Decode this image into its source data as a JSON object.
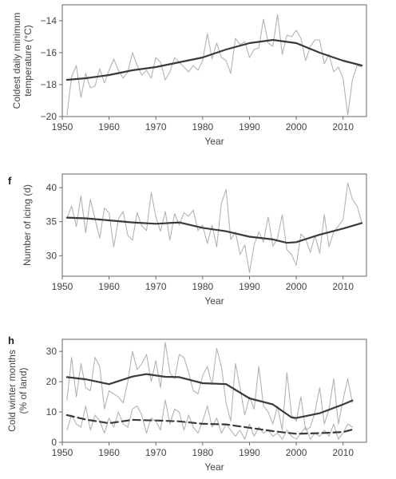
{
  "chart_data": [
    {
      "type": "line",
      "panel_letter": "",
      "xlabel": "Year",
      "ylabel_lines": [
        "Coldest daily minimum",
        "temperature (°C)"
      ],
      "xlim": [
        1950,
        2015
      ],
      "ylim": [
        -20,
        -13
      ],
      "xticks": [
        1950,
        1960,
        1970,
        1980,
        1990,
        2000,
        2010
      ],
      "yticks": [
        -20,
        -18,
        -16,
        -14
      ],
      "series": [
        {
          "style": "raw",
          "color": "#b3b3b3",
          "x": [
            1951,
            1952,
            1953,
            1954,
            1955,
            1956,
            1957,
            1958,
            1959,
            1960,
            1961,
            1962,
            1963,
            1964,
            1965,
            1966,
            1967,
            1968,
            1969,
            1970,
            1971,
            1972,
            1973,
            1974,
            1975,
            1976,
            1977,
            1978,
            1979,
            1980,
            1981,
            1982,
            1983,
            1984,
            1985,
            1986,
            1987,
            1988,
            1989,
            1990,
            1991,
            1992,
            1993,
            1994,
            1995,
            1996,
            1997,
            1998,
            1999,
            2000,
            2001,
            2002,
            2003,
            2004,
            2005,
            2006,
            2007,
            2008,
            2009,
            2010,
            2011,
            2012,
            2013,
            2014
          ],
          "y": [
            -19.9,
            -17.5,
            -16.8,
            -18.8,
            -17.3,
            -18.2,
            -18.1,
            -17.0,
            -17.9,
            -17.1,
            -16.4,
            -17.1,
            -17.6,
            -17.2,
            -16.0,
            -16.8,
            -17.4,
            -17.1,
            -17.6,
            -16.3,
            -16.6,
            -17.7,
            -17.2,
            -16.3,
            -16.6,
            -16.9,
            -17.2,
            -16.8,
            -17.1,
            -16.5,
            -14.8,
            -16.4,
            -15.4,
            -16.3,
            -16.5,
            -17.3,
            -15.1,
            -15.5,
            -15.3,
            -16.3,
            -15.8,
            -15.7,
            -13.9,
            -15.4,
            -15.6,
            -13.6,
            -16.1,
            -14.9,
            -15.0,
            -14.6,
            -15.1,
            -16.5,
            -15.6,
            -15.2,
            -15.2,
            -16.7,
            -16.1,
            -17.2,
            -16.9,
            -17.6,
            -19.9,
            -17.7,
            -16.8,
            -16.9
          ]
        },
        {
          "style": "smooth",
          "color": "#3a3a3a",
          "x": [
            1951,
            1955,
            1960,
            1965,
            1970,
            1975,
            1980,
            1985,
            1990,
            1995,
            2000,
            2005,
            2010,
            2014
          ],
          "y": [
            -17.7,
            -17.6,
            -17.4,
            -17.1,
            -16.9,
            -16.6,
            -16.3,
            -15.8,
            -15.4,
            -15.2,
            -15.4,
            -16.0,
            -16.5,
            -16.8
          ]
        }
      ]
    },
    {
      "type": "line",
      "panel_letter": "f",
      "xlabel": "Year",
      "ylabel_lines": [
        "Number of icing (d)"
      ],
      "xlim": [
        1950,
        2015
      ],
      "ylim": [
        27,
        42
      ],
      "xticks": [
        1950,
        1960,
        1970,
        1980,
        1990,
        2000,
        2010
      ],
      "yticks": [
        30,
        35,
        40
      ],
      "series": [
        {
          "style": "raw",
          "color": "#b3b3b3",
          "x": [
            1951,
            1952,
            1953,
            1954,
            1955,
            1956,
            1957,
            1958,
            1959,
            1960,
            1961,
            1962,
            1963,
            1964,
            1965,
            1966,
            1967,
            1968,
            1969,
            1970,
            1971,
            1972,
            1973,
            1974,
            1975,
            1976,
            1977,
            1978,
            1979,
            1980,
            1981,
            1982,
            1983,
            1984,
            1985,
            1986,
            1987,
            1988,
            1989,
            1990,
            1991,
            1992,
            1993,
            1994,
            1995,
            1996,
            1997,
            1998,
            1999,
            2000,
            2001,
            2002,
            2003,
            2004,
            2005,
            2006,
            2007,
            2008,
            2009,
            2010,
            2011,
            2012,
            2013,
            2014
          ],
          "y": [
            35.5,
            37.3,
            34.3,
            38.8,
            33.4,
            38.3,
            35.4,
            32.6,
            37.0,
            36.3,
            31.3,
            35.4,
            36.5,
            33.0,
            32.3,
            36.3,
            34.4,
            33.7,
            39.3,
            35.7,
            33.6,
            36.5,
            32.3,
            36.2,
            34.5,
            36.3,
            35.8,
            36.7,
            33.7,
            34.5,
            31.8,
            34.5,
            31.3,
            37.7,
            39.7,
            32.4,
            33.5,
            30.2,
            31.6,
            27.5,
            31.6,
            33.5,
            32.0,
            35.7,
            31.4,
            32.6,
            36.0,
            30.9,
            30.2,
            28.6,
            33.2,
            32.5,
            30.5,
            33.0,
            30.4,
            36.0,
            31.3,
            33.5,
            34.4,
            35.3,
            40.7,
            38.3,
            37.3,
            34.9
          ]
        },
        {
          "style": "smooth",
          "color": "#3a3a3a",
          "x": [
            1951,
            1955,
            1960,
            1965,
            1970,
            1975,
            1980,
            1985,
            1990,
            1995,
            1998,
            2000,
            2005,
            2010,
            2014
          ],
          "y": [
            35.6,
            35.5,
            35.2,
            34.9,
            34.7,
            34.9,
            34.1,
            33.6,
            32.8,
            32.4,
            31.9,
            32.0,
            33.1,
            34.0,
            34.8
          ]
        }
      ]
    },
    {
      "type": "line",
      "panel_letter": "h",
      "xlabel": "Year",
      "ylabel_lines": [
        "Cold winter months",
        "(% of land)"
      ],
      "xlim": [
        1950,
        2015
      ],
      "ylim": [
        0,
        34
      ],
      "xticks": [
        1950,
        1960,
        1970,
        1980,
        1990,
        2000,
        2010
      ],
      "yticks": [
        0,
        10,
        20,
        30
      ],
      "series": [
        {
          "style": "raw",
          "color": "#b3b3b3",
          "x": [
            1951,
            1952,
            1953,
            1954,
            1955,
            1956,
            1957,
            1958,
            1959,
            1960,
            1961,
            1962,
            1963,
            1964,
            1965,
            1966,
            1967,
            1968,
            1969,
            1970,
            1971,
            1972,
            1973,
            1974,
            1975,
            1976,
            1977,
            1978,
            1979,
            1980,
            1981,
            1982,
            1983,
            1984,
            1985,
            1986,
            1987,
            1988,
            1989,
            1990,
            1991,
            1992,
            1993,
            1994,
            1995,
            1996,
            1997,
            1998,
            1999,
            2000,
            2001,
            2002,
            2003,
            2004,
            2005,
            2006,
            2007,
            2008,
            2009,
            2010,
            2011,
            2012
          ],
          "y": [
            14,
            28,
            15,
            26,
            18,
            17,
            28,
            25,
            11,
            17,
            16,
            15,
            13,
            20,
            30,
            24,
            26,
            29,
            20,
            27,
            18,
            33,
            23,
            21,
            29,
            28,
            23,
            17,
            16,
            22,
            25,
            19,
            31,
            25,
            13,
            7,
            26,
            18,
            9,
            15,
            11,
            25,
            12,
            10,
            6,
            12,
            4,
            23,
            9,
            7,
            15,
            4,
            5,
            10,
            18,
            6,
            11,
            21,
            6,
            14,
            21,
            13
          ]
        },
        {
          "style": "raw",
          "color": "#b3b3b3",
          "x": [
            1951,
            1952,
            1953,
            1954,
            1955,
            1956,
            1957,
            1958,
            1959,
            1960,
            1961,
            1962,
            1963,
            1964,
            1965,
            1966,
            1967,
            1968,
            1969,
            1970,
            1971,
            1972,
            1973,
            1974,
            1975,
            1976,
            1977,
            1978,
            1979,
            1980,
            1981,
            1982,
            1983,
            1984,
            1985,
            1986,
            1987,
            1988,
            1989,
            1990,
            1991,
            1992,
            1993,
            1994,
            1995,
            1996,
            1997,
            1998,
            1999,
            2000,
            2001,
            2002,
            2003,
            2004,
            2005,
            2006,
            2007,
            2008,
            2009,
            2010,
            2011,
            2012
          ],
          "y": [
            4,
            9,
            6,
            5,
            12,
            4,
            9,
            7,
            3,
            8,
            5,
            10,
            6,
            5,
            11,
            12,
            9,
            3,
            8,
            7,
            4,
            14,
            6,
            11,
            10,
            4,
            9,
            5,
            3,
            7,
            12,
            5,
            8,
            3,
            6,
            4,
            2,
            4,
            1,
            6,
            2,
            5,
            3,
            4,
            2,
            3,
            1,
            4,
            2,
            1,
            3,
            5,
            1,
            3,
            2,
            4,
            2,
            6,
            1,
            3,
            6,
            5
          ]
        },
        {
          "style": "smooth",
          "color": "#3a3a3a",
          "x": [
            1951,
            1955,
            1960,
            1965,
            1968,
            1972,
            1975,
            1980,
            1985,
            1990,
            1995,
            1999,
            2000,
            2005,
            2010,
            2012
          ],
          "y": [
            21.5,
            20.8,
            19.2,
            21.7,
            22.5,
            21.6,
            21.5,
            19.5,
            19.2,
            14.5,
            12.5,
            8.2,
            8.0,
            9.6,
            12.5,
            13.8
          ]
        },
        {
          "style": "dashed",
          "color": "#3a3a3a",
          "x": [
            1951,
            1955,
            1960,
            1965,
            1970,
            1975,
            1980,
            1985,
            1990,
            1995,
            2000,
            2005,
            2010,
            2012
          ],
          "y": [
            9.0,
            7.5,
            6.3,
            7.4,
            7.2,
            6.9,
            6.1,
            5.9,
            4.8,
            3.7,
            2.8,
            3.0,
            3.4,
            4.2
          ]
        }
      ]
    }
  ]
}
